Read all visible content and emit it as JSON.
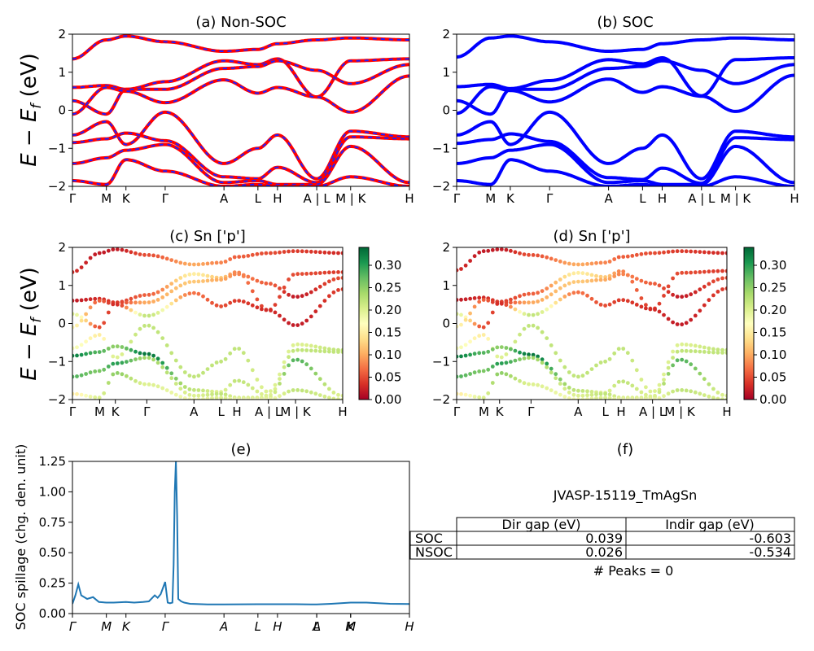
{
  "colors": {
    "nonsoc_line": "#ff0000",
    "nonsoc_dash": "#1f1fff",
    "soc_line": "#0000ff",
    "spillage_line": "#1f77b4",
    "colormap": [
      "#a50026",
      "#d73027",
      "#f46d43",
      "#fdae61",
      "#fee08b",
      "#ffffbf",
      "#d9ef8b",
      "#a6d96a",
      "#66bd63",
      "#1a9850",
      "#006837"
    ]
  },
  "kpath": {
    "labels": [
      "Γ",
      "M",
      "K",
      "Γ",
      "A",
      "L",
      "H",
      "A | L",
      "M | K",
      "H"
    ],
    "positions": [
      0,
      0.577,
      0.91,
      1.577,
      2.577,
      3.154,
      3.487,
      4.154,
      4.731,
      5.731
    ]
  },
  "spillage_kpath": {
    "labels": [
      "Γ",
      "M",
      "K",
      "Γ",
      "A",
      "L",
      "H",
      "A",
      "L",
      "M",
      "K",
      "H"
    ],
    "positions": [
      0,
      0.577,
      0.91,
      1.577,
      2.577,
      3.154,
      3.487,
      4.154,
      4.154,
      4.731,
      4.731,
      5.731
    ]
  },
  "colorbar_ticks": [
    "0.00",
    "0.05",
    "0.10",
    "0.15",
    "0.20",
    "0.25",
    "0.30"
  ],
  "chart_data": [
    {
      "type": "line",
      "panel": "a",
      "title": "(a) Non-SOC",
      "ylabel": "E − E_f (eV)",
      "ylim": [
        -2,
        2
      ],
      "yticks": [
        "−2",
        "−1",
        "0",
        "1",
        "2"
      ],
      "x_stops": [
        0,
        0.577,
        0.91,
        1.577,
        2.577,
        3.154,
        3.487,
        4.154,
        4.731,
        5.731
      ],
      "bands": [
        [
          1.35,
          1.85,
          1.95,
          1.8,
          1.55,
          1.6,
          1.75,
          1.85,
          1.9,
          1.85
        ],
        [
          0.6,
          0.65,
          0.55,
          0.75,
          1.3,
          1.2,
          1.35,
          0.35,
          1.3,
          1.35
        ],
        [
          0.25,
          -0.1,
          0.55,
          0.55,
          1.1,
          1.15,
          1.3,
          1.05,
          0.7,
          1.2
        ],
        [
          -0.1,
          0.6,
          0.5,
          0.2,
          0.8,
          0.45,
          0.6,
          0.35,
          -0.05,
          0.9
        ],
        [
          -0.65,
          -0.3,
          -0.9,
          -0.05,
          -1.4,
          -1.0,
          -0.65,
          -1.8,
          -0.55,
          -0.7
        ],
        [
          -0.85,
          -0.75,
          -0.6,
          -0.8,
          -1.75,
          -1.8,
          -1.5,
          -1.9,
          -0.7,
          -0.75
        ],
        [
          -1.4,
          -1.25,
          -1.05,
          -0.9,
          -1.9,
          -1.85,
          -1.95,
          -1.95,
          -0.95,
          -1.9
        ],
        [
          -1.85,
          -1.95,
          -1.3,
          -1.6,
          -2.0,
          -1.95,
          -2.0,
          -2.0,
          -1.75,
          -2.0
        ]
      ]
    },
    {
      "type": "line",
      "panel": "b",
      "title": "(b) SOC",
      "ylabel": "",
      "ylim": [
        -2,
        2
      ],
      "yticks": [
        "−2",
        "−1",
        "0",
        "1",
        "2"
      ],
      "x_stops": [
        0,
        0.577,
        0.91,
        1.577,
        2.577,
        3.154,
        3.487,
        4.154,
        4.731,
        5.731
      ],
      "bands": [
        [
          1.4,
          1.9,
          1.95,
          1.8,
          1.55,
          1.6,
          1.75,
          1.85,
          1.9,
          1.85
        ],
        [
          0.62,
          0.68,
          0.57,
          0.78,
          1.33,
          1.22,
          1.38,
          0.38,
          1.33,
          1.38
        ],
        [
          0.25,
          -0.1,
          0.55,
          0.55,
          1.1,
          1.15,
          1.3,
          1.05,
          0.7,
          1.2
        ],
        [
          -0.08,
          0.62,
          0.52,
          0.22,
          0.82,
          0.47,
          0.62,
          0.37,
          -0.03,
          0.92
        ],
        [
          -0.65,
          -0.3,
          -0.9,
          -0.05,
          -1.4,
          -1.0,
          -0.65,
          -1.8,
          -0.55,
          -0.7
        ],
        [
          -0.87,
          -0.77,
          -0.62,
          -0.82,
          -1.77,
          -1.82,
          -1.52,
          -1.92,
          -0.72,
          -0.77
        ],
        [
          -1.4,
          -1.25,
          -1.05,
          -0.9,
          -1.9,
          -1.85,
          -1.95,
          -1.95,
          -0.95,
          -1.9
        ],
        [
          -1.85,
          -1.95,
          -1.3,
          -1.6,
          -2.0,
          -1.95,
          -2.0,
          -2.0,
          -1.75,
          -2.0
        ]
      ]
    },
    {
      "type": "scatter",
      "panel": "c",
      "title": "(c)  Sn ['p']",
      "ylabel": "E − E_f (eV)",
      "ylim": [
        -2,
        2
      ],
      "yticks": [
        "−2",
        "−1",
        "0",
        "1",
        "2"
      ],
      "clim": [
        0,
        0.34
      ],
      "x_stops": [
        0,
        0.577,
        0.91,
        1.577,
        2.577,
        3.154,
        3.487,
        4.154,
        4.731,
        5.731
      ],
      "bands": [
        {
          "y": [
            1.35,
            1.85,
            1.95,
            1.8,
            1.55,
            1.6,
            1.75,
            1.85,
            1.9,
            1.85
          ],
          "w": [
            0.03,
            0.02,
            0.02,
            0.05,
            0.1,
            0.08,
            0.06,
            0.05,
            0.04,
            0.03
          ]
        },
        {
          "y": [
            0.6,
            0.65,
            0.55,
            0.75,
            1.3,
            1.2,
            1.35,
            0.35,
            1.3,
            1.35
          ],
          "w": [
            0.02,
            0.03,
            0.04,
            0.06,
            0.15,
            0.12,
            0.08,
            0.04,
            0.05,
            0.04
          ]
        },
        {
          "y": [
            0.25,
            -0.1,
            0.55,
            0.55,
            1.1,
            1.15,
            1.3,
            1.05,
            0.7,
            1.2
          ],
          "w": [
            0.2,
            0.05,
            0.04,
            0.1,
            0.12,
            0.1,
            0.08,
            0.06,
            0.02,
            0.05
          ]
        },
        {
          "y": [
            -0.1,
            0.6,
            0.5,
            0.2,
            0.8,
            0.45,
            0.6,
            0.35,
            -0.05,
            0.9
          ],
          "w": [
            0.16,
            0.06,
            0.03,
            0.22,
            0.07,
            0.05,
            0.04,
            0.03,
            0.02,
            0.04
          ]
        },
        {
          "y": [
            -0.65,
            -0.3,
            -0.9,
            -0.05,
            -1.4,
            -1.0,
            -0.65,
            -1.8,
            -0.55,
            -0.7
          ],
          "w": [
            0.18,
            0.15,
            0.2,
            0.22,
            0.22,
            0.22,
            0.22,
            0.2,
            0.2,
            0.22
          ]
        },
        {
          "y": [
            -0.85,
            -0.75,
            -0.6,
            -0.8,
            -1.75,
            -1.8,
            -1.5,
            -1.9,
            -0.7,
            -0.75
          ],
          "w": [
            0.32,
            0.28,
            0.25,
            0.33,
            0.22,
            0.2,
            0.22,
            0.2,
            0.22,
            0.22
          ]
        },
        {
          "y": [
            -1.4,
            -1.25,
            -1.05,
            -0.9,
            -1.9,
            -1.85,
            -1.95,
            -1.95,
            -0.95,
            -1.9
          ],
          "w": [
            0.28,
            0.26,
            0.3,
            0.24,
            0.2,
            0.22,
            0.2,
            0.2,
            0.28,
            0.2
          ]
        },
        {
          "y": [
            -1.85,
            -1.95,
            -1.3,
            -1.6,
            -2.0,
            -1.95,
            -2.0,
            -2.0,
            -1.75,
            -2.0
          ],
          "w": [
            0.15,
            0.2,
            0.25,
            0.2,
            0.18,
            0.2,
            0.18,
            0.18,
            0.22,
            0.2
          ]
        }
      ]
    },
    {
      "type": "scatter",
      "panel": "d",
      "title": "(d) Sn ['p']",
      "ylabel": "",
      "ylim": [
        -2,
        2
      ],
      "yticks": [
        "−2",
        "−1",
        "0",
        "1",
        "2"
      ],
      "clim": [
        0,
        0.34
      ],
      "x_stops": [
        0,
        0.577,
        0.91,
        1.577,
        2.577,
        3.154,
        3.487,
        4.154,
        4.731,
        5.731
      ],
      "bands": [
        {
          "y": [
            1.4,
            1.9,
            1.95,
            1.8,
            1.55,
            1.6,
            1.75,
            1.85,
            1.9,
            1.85
          ],
          "w": [
            0.03,
            0.02,
            0.02,
            0.05,
            0.1,
            0.08,
            0.06,
            0.05,
            0.04,
            0.03
          ]
        },
        {
          "y": [
            0.62,
            0.68,
            0.57,
            0.78,
            1.33,
            1.22,
            1.38,
            0.38,
            1.33,
            1.38
          ],
          "w": [
            0.02,
            0.03,
            0.04,
            0.06,
            0.15,
            0.12,
            0.08,
            0.04,
            0.05,
            0.04
          ]
        },
        {
          "y": [
            0.25,
            -0.1,
            0.55,
            0.55,
            1.1,
            1.15,
            1.3,
            1.05,
            0.7,
            1.2
          ],
          "w": [
            0.2,
            0.05,
            0.04,
            0.1,
            0.12,
            0.1,
            0.08,
            0.06,
            0.02,
            0.05
          ]
        },
        {
          "y": [
            -0.08,
            0.62,
            0.52,
            0.22,
            0.82,
            0.47,
            0.62,
            0.37,
            -0.03,
            0.92
          ],
          "w": [
            0.16,
            0.06,
            0.03,
            0.22,
            0.07,
            0.05,
            0.04,
            0.03,
            0.02,
            0.04
          ]
        },
        {
          "y": [
            -0.65,
            -0.3,
            -0.9,
            -0.05,
            -1.4,
            -1.0,
            -0.65,
            -1.8,
            -0.55,
            -0.7
          ],
          "w": [
            0.18,
            0.15,
            0.2,
            0.22,
            0.22,
            0.22,
            0.22,
            0.2,
            0.2,
            0.22
          ]
        },
        {
          "y": [
            -0.87,
            -0.77,
            -0.62,
            -0.82,
            -1.77,
            -1.82,
            -1.52,
            -1.92,
            -0.72,
            -0.77
          ],
          "w": [
            0.32,
            0.28,
            0.25,
            0.33,
            0.22,
            0.2,
            0.22,
            0.2,
            0.22,
            0.22
          ]
        },
        {
          "y": [
            -1.4,
            -1.25,
            -1.05,
            -0.9,
            -1.9,
            -1.85,
            -1.95,
            -1.95,
            -0.95,
            -1.9
          ],
          "w": [
            0.28,
            0.26,
            0.3,
            0.24,
            0.2,
            0.22,
            0.2,
            0.2,
            0.28,
            0.2
          ]
        },
        {
          "y": [
            -1.85,
            -1.95,
            -1.3,
            -1.6,
            -2.0,
            -1.95,
            -2.0,
            -2.0,
            -1.75,
            -2.0
          ],
          "w": [
            0.15,
            0.2,
            0.25,
            0.2,
            0.18,
            0.2,
            0.18,
            0.18,
            0.22,
            0.2
          ]
        }
      ]
    },
    {
      "type": "line",
      "panel": "e",
      "title": "(e)",
      "ylabel": "SOC spillage (chg. den. unit)",
      "ylim": [
        0,
        1.25
      ],
      "yticks": [
        "0.00",
        "0.25",
        "0.50",
        "0.75",
        "1.00",
        "1.25"
      ],
      "xlim": [
        0,
        5.731
      ],
      "series": [
        {
          "name": "",
          "x": [
            0,
            0.05,
            0.1,
            0.15,
            0.25,
            0.35,
            0.45,
            0.577,
            0.7,
            0.91,
            1.05,
            1.2,
            1.3,
            1.4,
            1.45,
            1.5,
            1.577,
            1.62,
            1.66,
            1.7,
            1.72,
            1.74,
            1.76,
            1.78,
            1.8,
            1.85,
            1.9,
            2.0,
            2.3,
            2.577,
            3.154,
            3.487,
            3.8,
            4.154,
            4.4,
            4.731,
            5.0,
            5.4,
            5.731
          ],
          "y": [
            0.08,
            0.15,
            0.24,
            0.15,
            0.12,
            0.135,
            0.095,
            0.09,
            0.09,
            0.095,
            0.09,
            0.095,
            0.1,
            0.15,
            0.13,
            0.16,
            0.26,
            0.09,
            0.085,
            0.09,
            0.4,
            1.0,
            1.25,
            0.8,
            0.12,
            0.1,
            0.09,
            0.08,
            0.075,
            0.075,
            0.077,
            0.077,
            0.077,
            0.075,
            0.08,
            0.09,
            0.09,
            0.08,
            0.078
          ]
        }
      ]
    },
    {
      "type": "table",
      "panel": "f",
      "title": "(f)",
      "caption": "JVASP-15119_TmAgSn",
      "columns": [
        "Dir gap (eV)",
        "Indir gap (eV)"
      ],
      "rows": [
        {
          "label": "SOC",
          "values": [
            "0.039",
            "-0.603"
          ]
        },
        {
          "label": "NSOC",
          "values": [
            "0.026",
            "-0.534"
          ]
        }
      ],
      "footer": "# Peaks = 0"
    }
  ]
}
